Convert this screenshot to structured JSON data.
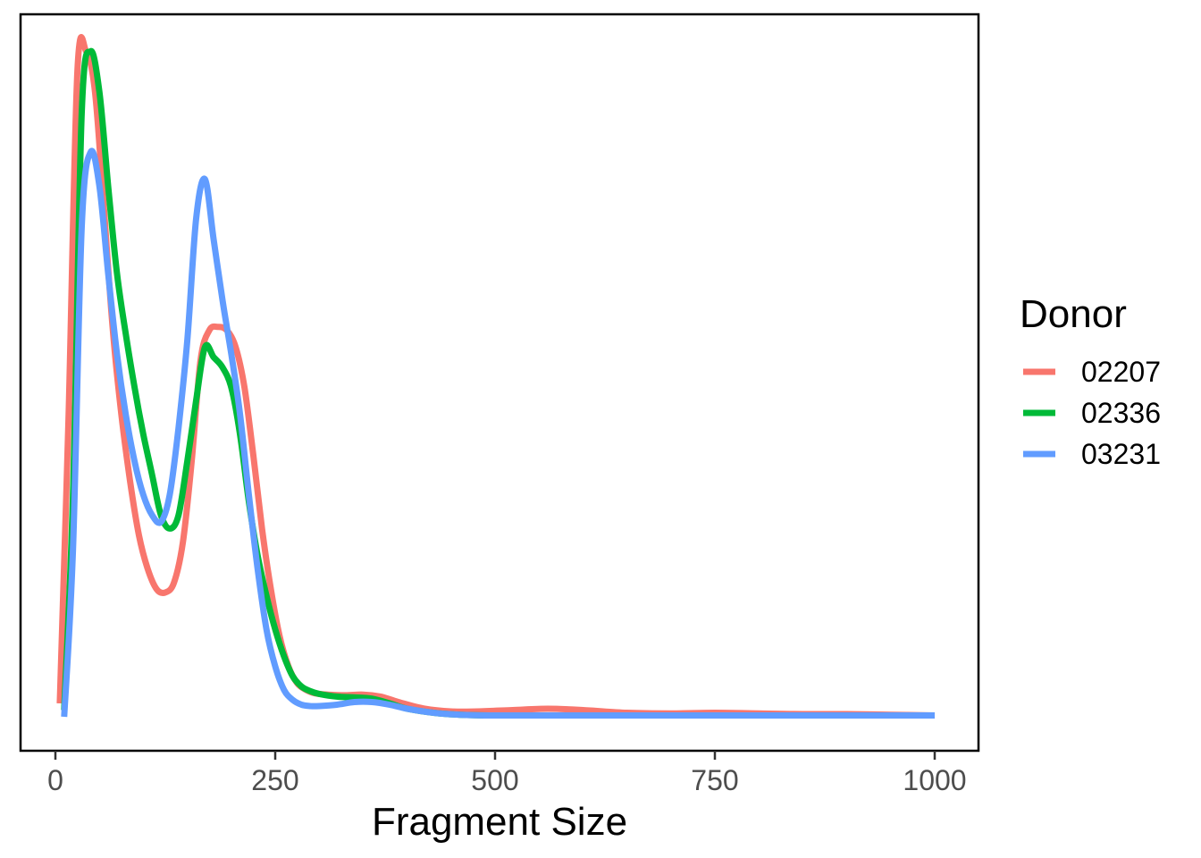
{
  "chart_data": {
    "type": "line",
    "title": "",
    "xlabel": "Fragment Size",
    "ylabel": "",
    "xlim": [
      0,
      1030
    ],
    "ylim": [
      0,
      1.0
    ],
    "x_ticks": [
      0,
      250,
      500,
      750,
      1000
    ],
    "x_tick_labels": [
      "0",
      "250",
      "500",
      "750",
      "1000"
    ],
    "y_ticks_shown": false,
    "grid": false,
    "legend": {
      "title": "Donor",
      "position": "right"
    },
    "series": [
      {
        "name": "02207",
        "color": "#F8766D",
        "x": [
          5,
          15,
          25,
          35,
          45,
          55,
          65,
          75,
          85,
          95,
          105,
          115,
          125,
          135,
          145,
          155,
          165,
          175,
          185,
          195,
          205,
          215,
          225,
          235,
          245,
          255,
          265,
          275,
          285,
          295,
          310,
          330,
          350,
          370,
          390,
          420,
          450,
          480,
          520,
          560,
          600,
          650,
          700,
          750,
          800,
          850,
          900,
          950,
          1000
        ],
        "y": [
          0.02,
          0.45,
          0.96,
          0.99,
          0.93,
          0.76,
          0.58,
          0.45,
          0.35,
          0.27,
          0.22,
          0.19,
          0.185,
          0.2,
          0.26,
          0.38,
          0.53,
          0.575,
          0.58,
          0.575,
          0.55,
          0.49,
          0.39,
          0.28,
          0.19,
          0.12,
          0.075,
          0.05,
          0.04,
          0.035,
          0.033,
          0.032,
          0.033,
          0.03,
          0.022,
          0.012,
          0.008,
          0.008,
          0.01,
          0.012,
          0.01,
          0.006,
          0.005,
          0.006,
          0.005,
          0.004,
          0.004,
          0.003,
          0.002
        ]
      },
      {
        "name": "02336",
        "color": "#00BA38",
        "x": [
          10,
          20,
          30,
          40,
          50,
          60,
          70,
          80,
          90,
          100,
          110,
          120,
          130,
          140,
          150,
          160,
          170,
          180,
          190,
          200,
          210,
          220,
          230,
          240,
          250,
          260,
          270,
          280,
          290,
          300,
          320,
          340,
          360,
          380,
          400,
          430,
          460,
          500,
          550,
          600,
          650,
          700,
          750,
          800,
          850,
          900,
          950,
          1000
        ],
        "y": [
          0.01,
          0.33,
          0.9,
          0.99,
          0.93,
          0.79,
          0.66,
          0.57,
          0.49,
          0.42,
          0.36,
          0.3,
          0.28,
          0.3,
          0.38,
          0.47,
          0.55,
          0.535,
          0.52,
          0.49,
          0.42,
          0.32,
          0.24,
          0.18,
          0.13,
          0.09,
          0.06,
          0.045,
          0.038,
          0.034,
          0.03,
          0.029,
          0.027,
          0.02,
          0.012,
          0.006,
          0.003,
          0.002,
          0.002,
          0.002,
          0.002,
          0.002,
          0.002,
          0.002,
          0.002,
          0.002,
          0.002,
          0.002
        ]
      },
      {
        "name": "03231",
        "color": "#619CFF",
        "x": [
          10,
          20,
          30,
          40,
          50,
          60,
          70,
          80,
          90,
          100,
          110,
          120,
          130,
          140,
          150,
          160,
          170,
          180,
          190,
          200,
          210,
          220,
          230,
          240,
          250,
          260,
          270,
          280,
          290,
          300,
          320,
          340,
          360,
          380,
          400,
          430,
          460,
          500,
          550,
          600,
          650,
          700,
          750,
          800,
          850,
          900,
          950,
          1000
        ],
        "y": [
          0.0,
          0.25,
          0.73,
          0.84,
          0.79,
          0.66,
          0.54,
          0.45,
          0.38,
          0.33,
          0.3,
          0.29,
          0.33,
          0.43,
          0.56,
          0.74,
          0.8,
          0.71,
          0.62,
          0.54,
          0.45,
          0.33,
          0.22,
          0.13,
          0.075,
          0.04,
          0.025,
          0.018,
          0.016,
          0.016,
          0.018,
          0.022,
          0.022,
          0.018,
          0.012,
          0.006,
          0.003,
          0.002,
          0.002,
          0.002,
          0.002,
          0.002,
          0.002,
          0.002,
          0.002,
          0.002,
          0.002,
          0.002
        ]
      }
    ]
  }
}
